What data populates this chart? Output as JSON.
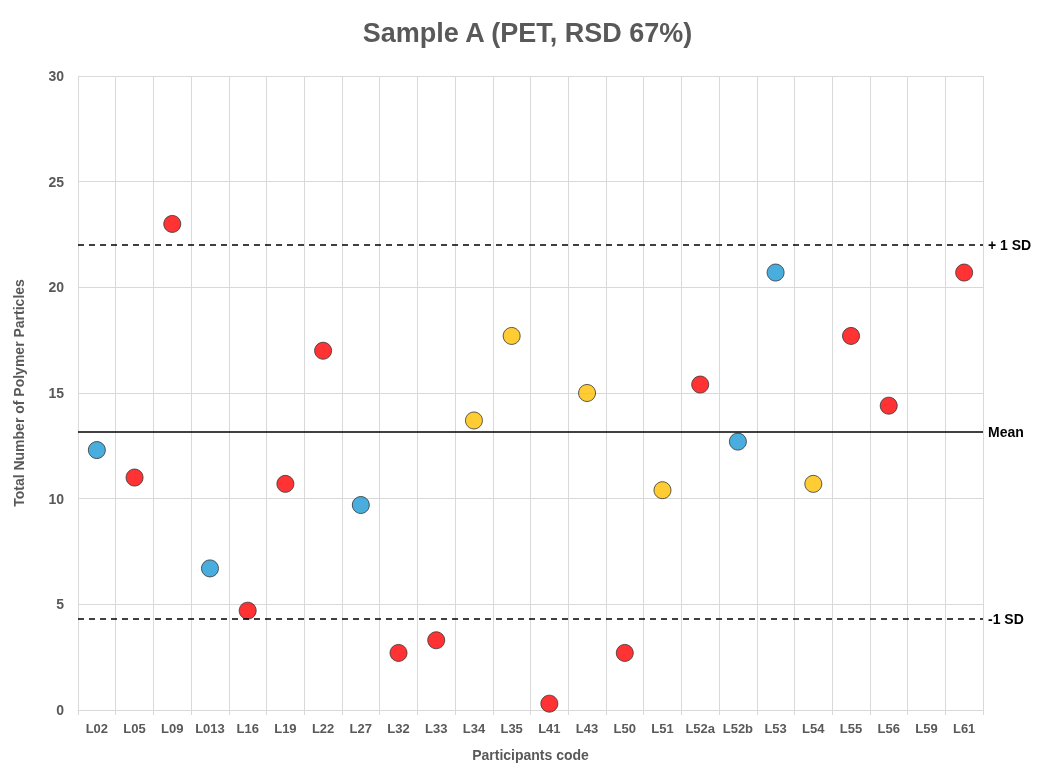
{
  "chart_data": {
    "type": "scatter",
    "title": "Sample A (PET, RSD 67%)",
    "xlabel": "Participants code",
    "ylabel": "Total Number of Polymer Particles",
    "categories": [
      "L02",
      "L05",
      "L09",
      "L013",
      "L16",
      "L19",
      "L22",
      "L27",
      "L32",
      "L33",
      "L34",
      "L35",
      "L41",
      "L43",
      "L50",
      "L51",
      "L52a",
      "L52b",
      "L53",
      "L54",
      "L55",
      "L56",
      "L59",
      "L61"
    ],
    "values": [
      12.3,
      11,
      23,
      6.7,
      4.7,
      10.7,
      17,
      9.7,
      2.7,
      3.3,
      13.7,
      17.7,
      0.3,
      15,
      2.7,
      10.4,
      15.4,
      12.7,
      20.7,
      10.7,
      17.7,
      14.4,
      null,
      20.7
    ],
    "colors": [
      "#1b9ad6",
      "#ff0000",
      "#ff0000",
      "#1b9ad6",
      "#ff0000",
      "#ff0000",
      "#ff0000",
      "#1b9ad6",
      "#ff0000",
      "#ff0000",
      "#ffc000",
      "#ffc000",
      "#ff0000",
      "#ffc000",
      "#ff0000",
      "#ffc000",
      "#ff0000",
      "#1b9ad6",
      "#1b9ad6",
      "#ffc000",
      "#ff0000",
      "#ff0000",
      "#ff0000",
      "#ff0000"
    ],
    "ylim": [
      0,
      30
    ],
    "yticks": [
      0,
      5,
      10,
      15,
      20,
      25,
      30
    ],
    "grid": true,
    "marker": "circle",
    "ref_lines": [
      {
        "axis": "y",
        "value": 22,
        "label": "+ 1 SD",
        "line_style": "dashed",
        "color": "#000000"
      },
      {
        "axis": "y",
        "value": 13.15,
        "label": "Mean",
        "line_style": "solid",
        "color": "#000000"
      },
      {
        "axis": "y",
        "value": 4.3,
        "label": "-1 SD",
        "line_style": "dashed",
        "color": "#000000"
      }
    ]
  }
}
